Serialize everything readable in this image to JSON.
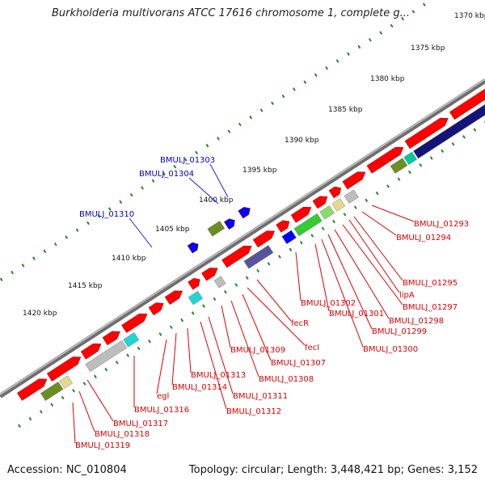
{
  "title": "Burkholderia multivorans ATCC 17616 chromosome 1, complete g...",
  "footer": {
    "accession": "Accession: NC_010804",
    "summary": "Topology: circular; Length: 3,448,421 bp; Genes: 3,152"
  },
  "scale_labels": [
    "1370 kbp",
    "1375 kbp",
    "1380 kbp",
    "1385 kbp",
    "1390 kbp",
    "1395 kbp",
    "1400 kbp",
    "1405 kbp",
    "1410 kbp",
    "1415 kbp",
    "1420 kbp"
  ],
  "top_labels": [
    "BMULJ_01303",
    "BMULJ_01304",
    "BMULJ_01310"
  ],
  "bottom_labels": [
    "BMULJ_01293",
    "BMULJ_01294",
    "BMULJ_01295",
    "lipA",
    "BMULJ_01297",
    "BMULJ_01298",
    "BMULJ_01299",
    "BMULJ_01300",
    "BMULJ_01301",
    "BMULJ_01302",
    "fecR",
    "fecI",
    "BMULJ_01307",
    "BMULJ_01308",
    "BMULJ_01309",
    "BMULJ_01311",
    "BMULJ_01312",
    "BMULJ_01313",
    "BMULJ_01314",
    "egl",
    "BMULJ_01316",
    "BMULJ_01317",
    "BMULJ_01318",
    "BMULJ_01319"
  ],
  "colors": {
    "plus_cds": "#ff0000",
    "minus_cds": "#ff0000",
    "top_label": "#0000cc",
    "bottom_label": "#dd0000",
    "leader_top": "#2222cc",
    "leader_bottom": "#dd0000",
    "backbone": "#8a8a8a",
    "tick": "#228822",
    "navy": "#141478",
    "green": "#33cc33",
    "olive": "#6b8e23",
    "khaki": "#e6d88c",
    "cyan": "#22d4d4",
    "gray": "#bdbdbd",
    "blue": "#0000ff",
    "slate": "#55559a",
    "teal": "#00c8a0"
  }
}
